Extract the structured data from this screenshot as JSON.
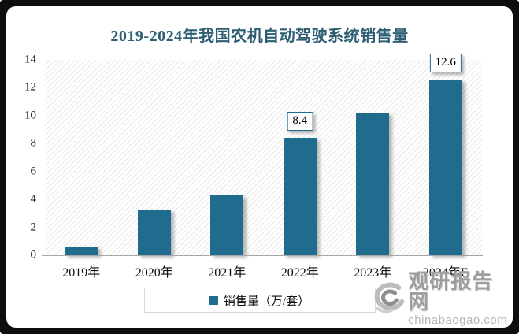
{
  "title": "2019-2024年我国农机自动驾驶系统销售量",
  "chart_data": {
    "type": "bar",
    "categories": [
      "2019年",
      "2020年",
      "2021年",
      "2022年",
      "2023年",
      "2024年E"
    ],
    "values": [
      0.6,
      3.3,
      4.3,
      8.4,
      10.2,
      12.6
    ],
    "data_labels": [
      "",
      "",
      "",
      "8.4",
      "",
      "12.6"
    ],
    "title": "2019-2024年我国农机自动驾驶系统销售量",
    "xlabel": "",
    "ylabel": "",
    "ylim": [
      0,
      14
    ],
    "yticks": [
      0,
      2,
      4,
      6,
      8,
      10,
      12,
      14
    ],
    "grid": false,
    "legend_entries": [
      "销售量（万/套）"
    ],
    "legend_position": "bottom"
  },
  "legend": {
    "label": "销售量（万/套）"
  },
  "watermark": {
    "name": "观研报告网",
    "domain": "chinabaogao.com"
  },
  "colors": {
    "bar": "#1F6C8F",
    "title": "#2E5E73",
    "axis_line": "#A6A6A6",
    "label_box_border": "#1F6C8F",
    "watermark_gray": "#9E9E9E"
  }
}
